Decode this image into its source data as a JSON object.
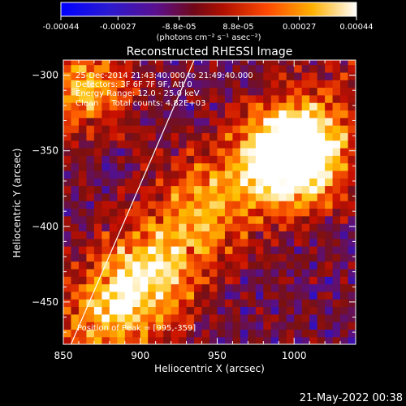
{
  "colorbar": {
    "ticks": [
      "-0.00044",
      "-0.00027",
      "-8.8e-05",
      "8.8e-05",
      "0.00027",
      "0.00044"
    ],
    "unit_label": "(photons cm⁻² s⁻¹ asec⁻²)"
  },
  "chart_data": {
    "type": "heatmap",
    "title": "Reconstructed RHESSI Image",
    "xlabel": "Heliocentric X (arcsec)",
    "ylabel": "Heliocentric Y (arcsec)",
    "xlim": [
      850,
      1040
    ],
    "ylim": [
      -478,
      -290
    ],
    "x_ticks": [
      850,
      900,
      950,
      1000
    ],
    "y_ticks": [
      -300,
      -350,
      -400,
      -450
    ],
    "colormap": [
      "#0000ff",
      "#3010c0",
      "#5a1080",
      "#7a1010",
      "#c81000",
      "#ff6000",
      "#ffc000",
      "#ffffff"
    ],
    "vmin": -0.00044,
    "vmax": 0.00044,
    "sources": [
      {
        "x": 860,
        "y": -310,
        "peak": 0.00041
      },
      {
        "x": 1000,
        "y": -352,
        "peak": 0.00044
      },
      {
        "x": 995,
        "y": -359,
        "peak": 0.00044
      },
      {
        "x": 940,
        "y": -385,
        "peak": 0.0003
      },
      {
        "x": 905,
        "y": -430,
        "peak": 0.00036
      },
      {
        "x": 880,
        "y": -460,
        "peak": 0.00032
      }
    ],
    "limb_line": [
      [
        855,
        -478
      ],
      [
        935,
        -290
      ]
    ]
  },
  "annotations": {
    "time": "25-Dec-2014 21:43:40.000 to 21:49:40.000",
    "detectors": "Detectors: 3F 6F 7F 9F, Att 0",
    "energy": "Energy Range: 12.0 - 25.0 keV",
    "counts": "Clean     Total counts: 4.82E+03",
    "peak": "Position of Peak = [995,-359]"
  },
  "footer_date": "21-May-2022 00:38"
}
